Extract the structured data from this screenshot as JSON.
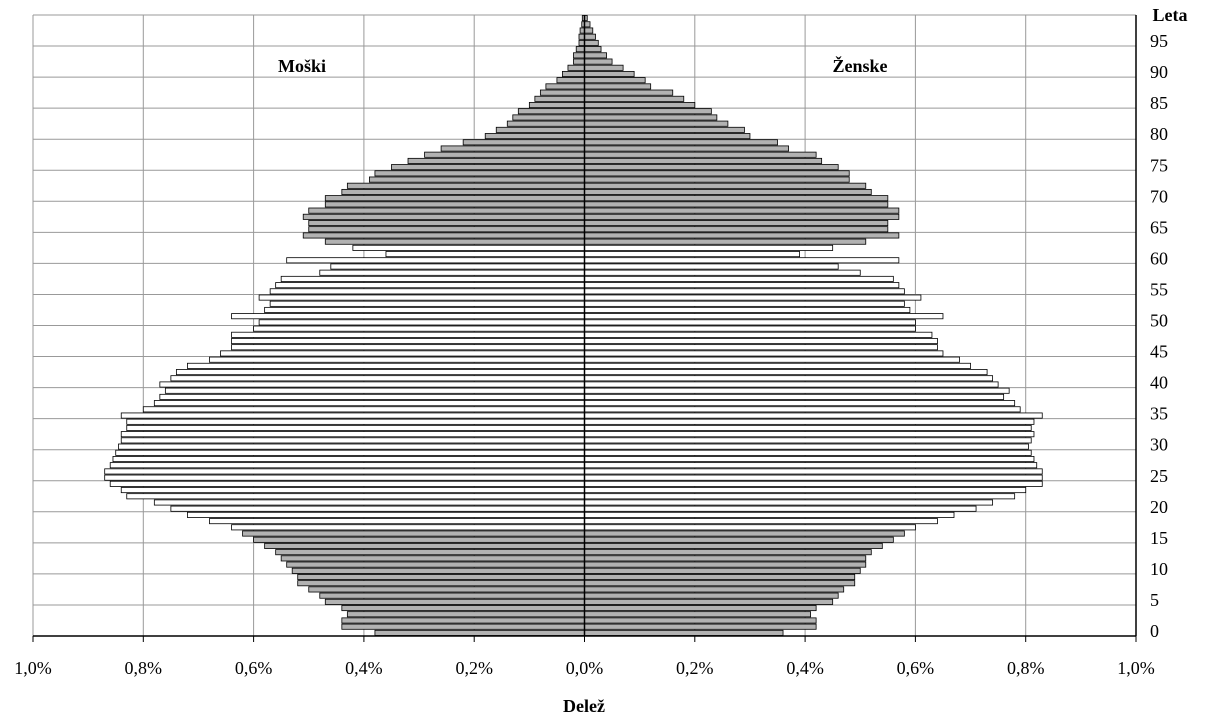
{
  "chart_data": {
    "type": "pyramid",
    "x_label": "Delež",
    "y_label": "Leta",
    "categories": [
      0,
      null,
      null,
      null,
      null,
      5,
      null,
      null,
      null,
      null,
      10,
      null,
      null,
      null,
      null,
      15,
      null,
      null,
      null,
      null,
      20,
      null,
      null,
      null,
      null,
      25,
      null,
      null,
      null,
      null,
      30,
      null,
      null,
      null,
      null,
      35,
      null,
      null,
      null,
      null,
      40,
      null,
      null,
      null,
      null,
      45,
      null,
      null,
      null,
      null,
      50,
      null,
      null,
      null,
      null,
      55,
      null,
      null,
      null,
      null,
      60,
      null,
      null,
      null,
      null,
      65,
      null,
      null,
      null,
      null,
      70,
      null,
      null,
      null,
      null,
      75,
      null,
      null,
      null,
      null,
      80,
      null,
      null,
      null,
      null,
      85,
      null,
      null,
      null,
      null,
      90,
      null,
      null,
      null,
      null,
      95,
      null,
      null,
      null,
      null
    ],
    "bar_colors": [
      "#b2b2b2",
      "#b2b2b2",
      "#b2b2b2",
      "#b2b2b2",
      "#b2b2b2",
      "#b2b2b2",
      "#b2b2b2",
      "#b2b2b2",
      "#b2b2b2",
      "#b2b2b2",
      "#b2b2b2",
      "#b2b2b2",
      "#b2b2b2",
      "#b2b2b2",
      "#b2b2b2",
      "#b2b2b2",
      "#b2b2b2",
      "#ffffff",
      "#ffffff",
      "#ffffff",
      "#ffffff",
      "#ffffff",
      "#ffffff",
      "#ffffff",
      "#ffffff",
      "#ffffff",
      "#ffffff",
      "#ffffff",
      "#ffffff",
      "#ffffff",
      "#ffffff",
      "#ffffff",
      "#ffffff",
      "#ffffff",
      "#ffffff",
      "#ffffff",
      "#ffffff",
      "#ffffff",
      "#ffffff",
      "#ffffff",
      "#ffffff",
      "#ffffff",
      "#ffffff",
      "#ffffff",
      "#ffffff",
      "#ffffff",
      "#ffffff",
      "#ffffff",
      "#ffffff",
      "#ffffff",
      "#ffffff",
      "#ffffff",
      "#ffffff",
      "#ffffff",
      "#ffffff",
      "#ffffff",
      "#ffffff",
      "#ffffff",
      "#ffffff",
      "#ffffff",
      "#ffffff",
      "#ffffff",
      "#ffffff",
      "#b2b2b2",
      "#b2b2b2",
      "#b2b2b2",
      "#b2b2b2",
      "#b2b2b2",
      "#b2b2b2",
      "#b2b2b2",
      "#b2b2b2",
      "#b2b2b2",
      "#b2b2b2",
      "#b2b2b2",
      "#b2b2b2",
      "#b2b2b2",
      "#b2b2b2",
      "#b2b2b2",
      "#b2b2b2",
      "#b2b2b2",
      "#b2b2b2",
      "#b2b2b2",
      "#b2b2b2",
      "#b2b2b2",
      "#b2b2b2",
      "#b2b2b2",
      "#b2b2b2",
      "#b2b2b2",
      "#b2b2b2",
      "#b2b2b2",
      "#b2b2b2",
      "#b2b2b2",
      "#b2b2b2",
      "#b2b2b2",
      "#b2b2b2",
      "#b2b2b2",
      "#b2b2b2",
      "#b2b2b2",
      "#b2b2b2",
      "#b2b2b2"
    ],
    "series": [
      {
        "name": "Moški",
        "side": "left",
        "values": [
          0.38,
          0.44,
          0.44,
          0.43,
          0.44,
          0.47,
          0.48,
          0.5,
          0.52,
          0.52,
          0.53,
          0.54,
          0.55,
          0.56,
          0.58,
          0.6,
          0.62,
          0.64,
          0.68,
          0.72,
          0.75,
          0.78,
          0.83,
          0.84,
          0.86,
          0.87,
          0.87,
          0.86,
          0.855,
          0.85,
          0.845,
          0.84,
          0.84,
          0.83,
          0.83,
          0.84,
          0.8,
          0.78,
          0.77,
          0.76,
          0.77,
          0.75,
          0.74,
          0.72,
          0.68,
          0.66,
          0.64,
          0.64,
          0.64,
          0.6,
          0.59,
          0.64,
          0.58,
          0.57,
          0.59,
          0.57,
          0.56,
          0.55,
          0.48,
          0.46,
          0.54,
          0.36,
          0.42,
          0.47,
          0.51,
          0.5,
          0.5,
          0.51,
          0.5,
          0.47,
          0.47,
          0.44,
          0.43,
          0.39,
          0.38,
          0.35,
          0.32,
          0.29,
          0.26,
          0.22,
          0.18,
          0.16,
          0.14,
          0.13,
          0.12,
          0.1,
          0.09,
          0.08,
          0.07,
          0.05,
          0.04,
          0.03,
          0.02,
          0.02,
          0.015,
          0.01,
          0.01,
          0.008,
          0.005,
          0.004
        ]
      },
      {
        "name": "Ženske",
        "side": "right",
        "values": [
          0.36,
          0.42,
          0.42,
          0.41,
          0.42,
          0.45,
          0.46,
          0.47,
          0.49,
          0.49,
          0.5,
          0.51,
          0.51,
          0.52,
          0.54,
          0.56,
          0.58,
          0.6,
          0.64,
          0.67,
          0.71,
          0.74,
          0.78,
          0.8,
          0.83,
          0.83,
          0.83,
          0.82,
          0.815,
          0.81,
          0.805,
          0.81,
          0.815,
          0.81,
          0.815,
          0.83,
          0.79,
          0.78,
          0.76,
          0.77,
          0.75,
          0.74,
          0.73,
          0.7,
          0.68,
          0.65,
          0.64,
          0.64,
          0.63,
          0.6,
          0.6,
          0.65,
          0.59,
          0.58,
          0.61,
          0.58,
          0.57,
          0.56,
          0.5,
          0.46,
          0.57,
          0.39,
          0.45,
          0.51,
          0.57,
          0.55,
          0.55,
          0.57,
          0.57,
          0.55,
          0.55,
          0.52,
          0.51,
          0.48,
          0.48,
          0.46,
          0.43,
          0.42,
          0.37,
          0.35,
          0.3,
          0.29,
          0.26,
          0.24,
          0.23,
          0.2,
          0.18,
          0.16,
          0.12,
          0.11,
          0.09,
          0.07,
          0.05,
          0.04,
          0.03,
          0.025,
          0.02,
          0.015,
          0.01,
          0.005
        ]
      }
    ],
    "xlim": [
      -1,
      1
    ],
    "xticks": [
      {
        "value": -1,
        "label": "1,0%"
      },
      {
        "value": -0.8,
        "label": "0,8%"
      },
      {
        "value": -0.6,
        "label": "0,6%"
      },
      {
        "value": -0.4,
        "label": "0,4%"
      },
      {
        "value": -0.2,
        "label": "0,2%"
      },
      {
        "value": 0,
        "label": "0,0%"
      },
      {
        "value": 0.2,
        "label": "0,2%"
      },
      {
        "value": 0.4,
        "label": "0,4%"
      },
      {
        "value": 0.6,
        "label": "0,6%"
      },
      {
        "value": 0.8,
        "label": "0,8%"
      },
      {
        "value": 1,
        "label": "1,0%"
      }
    ],
    "grid": true
  }
}
